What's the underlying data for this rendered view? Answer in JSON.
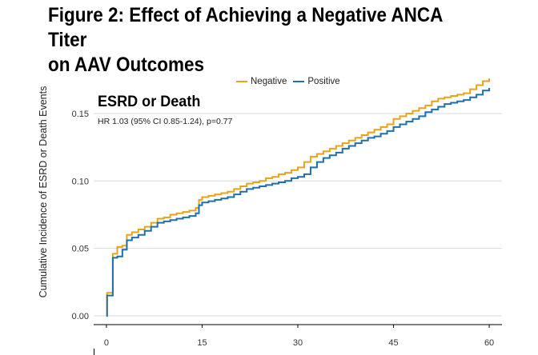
{
  "title": {
    "line1": "Figure 2: Effect of Achieving a Negative ANCA Titer",
    "line2": "on AAV Outcomes"
  },
  "chart_data": {
    "type": "line",
    "step": true,
    "annotation": "ESRD or Death",
    "annotation_sub": "HR 1.03 (95% CI 0.85-1.24), p=0.77",
    "xlabel": "",
    "ylabel": "Cumulative Incidence of ESRD or Death Events",
    "xlim": [
      -2,
      62
    ],
    "ylim": [
      -0.003,
      0.182
    ],
    "xticks": [
      0,
      15,
      30,
      45,
      60
    ],
    "yticks": [
      0.0,
      0.05,
      0.1,
      0.15
    ],
    "xtick_labels": [
      "0",
      "15",
      "30",
      "45",
      "60"
    ],
    "ytick_labels": [
      "0.00",
      "0.05",
      "0.10",
      "0.15"
    ],
    "grid": "horizontal",
    "legend_position": "top",
    "series": [
      {
        "name": "Negative",
        "color": "#E8A318",
        "x": [
          0,
          0.1,
          1,
          1.7,
          2.5,
          3.2,
          4,
          5,
          6,
          7,
          8,
          9,
          10,
          11,
          12,
          13,
          14,
          14.5,
          15,
          16,
          17,
          18,
          19,
          20,
          21,
          22,
          23,
          24,
          25,
          26,
          27,
          28,
          29,
          30,
          31,
          32,
          33,
          34,
          35,
          36,
          37,
          38,
          39,
          40,
          41,
          42,
          43,
          44,
          45,
          46,
          47,
          48,
          49,
          50,
          51,
          52,
          53,
          54,
          55,
          56,
          57,
          58,
          59,
          60
        ],
        "y": [
          0,
          0.017,
          0.046,
          0.051,
          0.052,
          0.06,
          0.062,
          0.064,
          0.066,
          0.069,
          0.072,
          0.073,
          0.075,
          0.076,
          0.077,
          0.078,
          0.08,
          0.086,
          0.088,
          0.089,
          0.09,
          0.091,
          0.092,
          0.094,
          0.096,
          0.098,
          0.099,
          0.1,
          0.102,
          0.103,
          0.105,
          0.106,
          0.108,
          0.11,
          0.114,
          0.118,
          0.12,
          0.122,
          0.124,
          0.126,
          0.128,
          0.13,
          0.132,
          0.134,
          0.136,
          0.138,
          0.14,
          0.142,
          0.146,
          0.148,
          0.15,
          0.152,
          0.154,
          0.156,
          0.159,
          0.161,
          0.162,
          0.163,
          0.164,
          0.165,
          0.168,
          0.171,
          0.174,
          0.176
        ]
      },
      {
        "name": "Positive",
        "color": "#1F6FA8",
        "x": [
          0,
          0.1,
          1,
          1.7,
          2.5,
          3.2,
          4,
          5,
          6,
          7,
          8,
          9,
          10,
          11,
          12,
          13,
          14,
          14.5,
          15,
          16,
          17,
          18,
          19,
          20,
          21,
          22,
          23,
          24,
          25,
          26,
          27,
          28,
          29,
          30,
          31,
          32,
          33,
          34,
          35,
          36,
          37,
          38,
          39,
          40,
          41,
          42,
          43,
          44,
          45,
          46,
          47,
          48,
          49,
          50,
          51,
          52,
          53,
          54,
          55,
          56,
          57,
          58,
          59,
          60
        ],
        "y": [
          0,
          0.015,
          0.043,
          0.044,
          0.049,
          0.056,
          0.058,
          0.06,
          0.063,
          0.066,
          0.069,
          0.07,
          0.071,
          0.072,
          0.073,
          0.074,
          0.076,
          0.082,
          0.084,
          0.085,
          0.086,
          0.087,
          0.088,
          0.09,
          0.092,
          0.094,
          0.095,
          0.096,
          0.097,
          0.098,
          0.099,
          0.1,
          0.102,
          0.103,
          0.105,
          0.11,
          0.114,
          0.117,
          0.119,
          0.121,
          0.124,
          0.126,
          0.128,
          0.13,
          0.132,
          0.133,
          0.135,
          0.137,
          0.14,
          0.142,
          0.144,
          0.146,
          0.148,
          0.151,
          0.153,
          0.155,
          0.157,
          0.158,
          0.159,
          0.16,
          0.162,
          0.164,
          0.167,
          0.169
        ]
      }
    ]
  }
}
